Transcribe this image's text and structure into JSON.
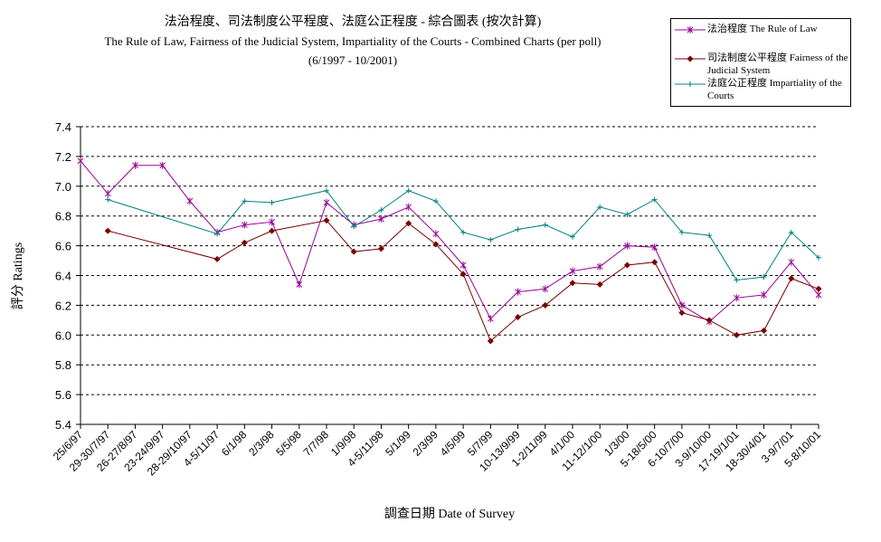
{
  "chart_data": {
    "type": "line",
    "title": "法治程度、司法制度公平程度、法庭公正程度 - 綜合圖表 (按次計算)",
    "subtitle": "The Rule of Law, Fairness of the Judicial System, Impartiality of the Courts - Combined Charts (per poll)",
    "period": "(6/1997 - 10/2001)",
    "xlabel": "調查日期 Date of Survey",
    "ylabel": "評分 Ratings",
    "ylim": [
      5.4,
      7.4
    ],
    "yticks": [
      "7.4",
      "7.2",
      "7.0",
      "6.8",
      "6.6",
      "6.4",
      "6.2",
      "6.0",
      "5.8",
      "5.6",
      "5.4"
    ],
    "grid": "horizontal dashed",
    "legend_position": "top-right",
    "categories": [
      "25/6/97",
      "29-30/7/97",
      "26-27/8/97",
      "23-24/9/97",
      "28-29/10/97",
      "4-5/11/97",
      "6/1/98",
      "2/3/98",
      "5/5/98",
      "7/7/98",
      "1/9/98",
      "4-5/11/98",
      "5/1/99",
      "2/3/99",
      "4/5/99",
      "5/7/99",
      "10-13/9/99",
      "1-2/11/99",
      "4/1/00",
      "11-12/1/00",
      "1/3/00",
      "5-18/5/00",
      "6-10/7/00",
      "3-9/10/00",
      "17-19/1/01",
      "18-30/4/01",
      "3-9/7/01",
      "5-8/10/01"
    ],
    "series": [
      {
        "name": "法治程度 The Rule of Law",
        "color": "#990099",
        "marker": "asterisk",
        "values": [
          7.17,
          6.95,
          7.14,
          7.14,
          6.9,
          6.69,
          6.74,
          6.76,
          6.34,
          6.89,
          6.74,
          6.78,
          6.86,
          6.68,
          6.47,
          6.11,
          6.29,
          6.31,
          6.43,
          6.46,
          6.6,
          6.59,
          6.2,
          6.09,
          6.25,
          6.27,
          6.49,
          6.27
        ]
      },
      {
        "name": "司法制度公平程度 Fairness of the Judicial System",
        "color": "#7a0000",
        "marker": "diamond",
        "values": [
          null,
          6.7,
          null,
          null,
          null,
          6.51,
          6.62,
          6.7,
          null,
          6.77,
          6.56,
          6.58,
          6.75,
          6.61,
          6.41,
          5.96,
          6.12,
          6.2,
          6.35,
          6.34,
          6.47,
          6.49,
          6.15,
          6.1,
          6.0,
          6.03,
          6.38,
          6.31
        ]
      },
      {
        "name": "法庭公正程度 Impartiality of the Courts",
        "color": "#008080",
        "marker": "plus",
        "values": [
          null,
          6.91,
          null,
          null,
          null,
          6.68,
          6.9,
          6.89,
          null,
          6.97,
          6.73,
          6.84,
          6.97,
          6.9,
          6.69,
          6.64,
          6.71,
          6.74,
          6.66,
          6.86,
          6.81,
          6.91,
          6.69,
          6.67,
          6.37,
          6.39,
          6.69,
          6.52
        ]
      }
    ]
  }
}
